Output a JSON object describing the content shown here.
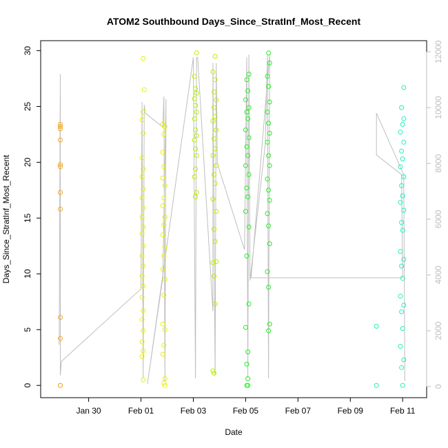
{
  "chart_data": {
    "type": "scatter",
    "title": "ATOM2 Southbound Days_Since_StratInf_Most_Recent",
    "xlabel": "Date",
    "ylabel": "Days_Since_StratInf_Most_Recent",
    "x_axis": {
      "unit": "date",
      "range": [
        "2018-01-28T04:00",
        "2018-02-11T22:00"
      ],
      "ticks": [
        "2018-01-30",
        "2018-02-01",
        "2018-02-03",
        "2018-02-05",
        "2018-02-07",
        "2018-02-09",
        "2018-02-11"
      ],
      "tick_labels": [
        "Jan 30",
        "Feb 01",
        "Feb 03",
        "Feb 05",
        "Feb 07",
        "Feb 09",
        "Feb 11"
      ]
    },
    "y_axis": {
      "range": [
        -1.1,
        30.9
      ],
      "ticks": [
        0,
        5,
        10,
        15,
        20,
        25,
        30
      ],
      "tick_labels": [
        "0",
        "5",
        "10",
        "15",
        "20",
        "25",
        "30"
      ]
    },
    "y2_axis": {
      "position": "right",
      "range": [
        -400,
        12400
      ],
      "ticks": [
        0,
        2000,
        4000,
        6000,
        8000,
        10000,
        12000
      ],
      "tick_labels": [
        "0",
        "2000",
        "4000",
        "6000",
        "8000",
        "10000",
        "12000"
      ],
      "color": "#bebebe"
    },
    "grid": false,
    "legend": "none",
    "colors": {
      "line": "#bebebe",
      "points_gradient": [
        "#ff8000",
        "#ffff00",
        "#c0ff00",
        "#00ff00",
        "#00ffc0"
      ]
    },
    "series": [
      {
        "color": "#f5a623",
        "points": [
          [
            "2018-01-28T22:00",
            23.4
          ],
          [
            "2018-01-28T22:00",
            23.2
          ],
          [
            "2018-01-28T22:00",
            23.0
          ],
          [
            "2018-01-28T22:00",
            22.0
          ],
          [
            "2018-01-28T22:00",
            19.8
          ],
          [
            "2018-01-28T22:00",
            19.6
          ],
          [
            "2018-01-28T22:00",
            17.3
          ],
          [
            "2018-01-28T22:00",
            15.8
          ],
          [
            "2018-01-28T22:00",
            6.1
          ],
          [
            "2018-01-28T22:00",
            4.2
          ],
          [
            "2018-01-28T22:00",
            0
          ],
          [
            "2018-01-28T22:00",
            0
          ]
        ]
      },
      {
        "color": "#e8f000",
        "points": [
          [
            "2018-02-01T02:00",
            29.3
          ],
          [
            "2018-02-01T03:00",
            26.5
          ],
          [
            "2018-02-01T02:00",
            24.5
          ],
          [
            "2018-02-01T01:00",
            23.8
          ],
          [
            "2018-02-01T02:00",
            22.6
          ],
          [
            "2018-02-01T01:00",
            20.4
          ],
          [
            "2018-02-01T02:00",
            19.4
          ],
          [
            "2018-02-01T01:00",
            18.7
          ],
          [
            "2018-02-01T02:00",
            17.6
          ],
          [
            "2018-02-01T01:00",
            16.8
          ],
          [
            "2018-02-01T02:00",
            15.9
          ],
          [
            "2018-02-01T01:00",
            15.1
          ],
          [
            "2018-02-01T02:00",
            14.2
          ],
          [
            "2018-02-01T01:00",
            13.6
          ],
          [
            "2018-02-01T02:00",
            12.5
          ],
          [
            "2018-02-01T01:00",
            11.6
          ],
          [
            "2018-02-01T02:00",
            10.7
          ],
          [
            "2018-02-01T01:00",
            9.8
          ],
          [
            "2018-02-01T02:00",
            8.9
          ],
          [
            "2018-02-01T01:00",
            7.9
          ],
          [
            "2018-02-01T02:00",
            6.7
          ],
          [
            "2018-02-01T01:00",
            5.9
          ],
          [
            "2018-02-01T02:00",
            4.9
          ],
          [
            "2018-02-01T01:00",
            3.9
          ],
          [
            "2018-02-01T02:00",
            3.1
          ],
          [
            "2018-02-01T01:00",
            2.6
          ],
          [
            "2018-02-01T02:00",
            0.5
          ],
          [
            "2018-02-01T20:00",
            23.4
          ],
          [
            "2018-02-01T22:00",
            23.2
          ],
          [
            "2018-02-01T21:00",
            22.5
          ],
          [
            "2018-02-01T20:00",
            20.9
          ],
          [
            "2018-02-01T21:00",
            19.6
          ],
          [
            "2018-02-01T20:00",
            18.6
          ],
          [
            "2018-02-01T22:00",
            17.9
          ],
          [
            "2018-02-01T21:00",
            16.8
          ],
          [
            "2018-02-01T20:00",
            16.1
          ],
          [
            "2018-02-01T22:00",
            15.1
          ],
          [
            "2018-02-01T21:00",
            14.4
          ],
          [
            "2018-02-01T20:00",
            13.5
          ],
          [
            "2018-02-01T22:00",
            12.4
          ],
          [
            "2018-02-01T21:00",
            11.6
          ],
          [
            "2018-02-01T20:00",
            10.4
          ],
          [
            "2018-02-01T22:00",
            9.5
          ],
          [
            "2018-02-01T21:00",
            8.1
          ],
          [
            "2018-02-01T20:00",
            5.5
          ],
          [
            "2018-02-01T22:00",
            5.0
          ],
          [
            "2018-02-01T21:00",
            3.6
          ],
          [
            "2018-02-01T20:00",
            2.8
          ],
          [
            "2018-02-01T22:00",
            0.6
          ],
          [
            "2018-02-01T21:00",
            0.2
          ],
          [
            "2018-02-01T22:00",
            0
          ]
        ]
      },
      {
        "color": "#b8ee00",
        "points": [
          [
            "2018-02-03T03:00",
            29.8
          ],
          [
            "2018-02-03T01:00",
            27.7
          ],
          [
            "2018-02-03T02:00",
            26.6
          ],
          [
            "2018-02-03T03:00",
            26.2
          ],
          [
            "2018-02-03T01:00",
            25.7
          ],
          [
            "2018-02-03T02:00",
            25.1
          ],
          [
            "2018-02-03T03:00",
            24.5
          ],
          [
            "2018-02-03T01:00",
            23.9
          ],
          [
            "2018-02-03T02:00",
            22.9
          ],
          [
            "2018-02-03T03:00",
            22.4
          ],
          [
            "2018-02-03T01:00",
            22.0
          ],
          [
            "2018-02-03T02:00",
            21.2
          ],
          [
            "2018-02-03T03:00",
            20.6
          ],
          [
            "2018-02-03T02:00",
            19.4
          ],
          [
            "2018-02-03T01:00",
            18.7
          ],
          [
            "2018-02-03T03:00",
            17.3
          ],
          [
            "2018-02-03T02:00",
            16.9
          ],
          [
            "2018-02-03T20:00",
            29.5
          ],
          [
            "2018-02-03T18:00",
            28.1
          ],
          [
            "2018-02-03T20:00",
            27.4
          ],
          [
            "2018-02-03T19:00",
            26.3
          ],
          [
            "2018-02-03T21:00",
            25.6
          ],
          [
            "2018-02-03T19:00",
            24.9
          ],
          [
            "2018-02-03T20:00",
            24.1
          ],
          [
            "2018-02-03T18:00",
            23.7
          ],
          [
            "2018-02-03T21:00",
            22.9
          ],
          [
            "2018-02-03T19:00",
            22.1
          ],
          [
            "2018-02-03T20:00",
            21.2
          ],
          [
            "2018-02-03T18:00",
            20.6
          ],
          [
            "2018-02-03T21:00",
            19.7
          ],
          [
            "2018-02-03T19:00",
            18.9
          ],
          [
            "2018-02-03T20:00",
            18.1
          ],
          [
            "2018-02-03T18:00",
            16.7
          ],
          [
            "2018-02-03T21:00",
            15.6
          ],
          [
            "2018-02-03T19:00",
            14.0
          ],
          [
            "2018-02-03T20:00",
            12.9
          ],
          [
            "2018-02-03T18:00",
            11.0
          ],
          [
            "2018-02-03T21:00",
            11.1
          ],
          [
            "2018-02-03T19:00",
            9.8
          ],
          [
            "2018-02-03T20:00",
            7.3
          ],
          [
            "2018-02-03T18:00",
            1.3
          ],
          [
            "2018-02-03T19:00",
            1.1
          ]
        ]
      },
      {
        "color": "#22ee22",
        "points": [
          [
            "2018-02-05T03:00",
            27.9
          ],
          [
            "2018-02-05T01:00",
            27.4
          ],
          [
            "2018-02-05T02:00",
            26.4
          ],
          [
            "2018-02-05T00:00",
            25.6
          ],
          [
            "2018-02-05T03:00",
            24.9
          ],
          [
            "2018-02-05T01:00",
            24.5
          ],
          [
            "2018-02-05T02:00",
            23.9
          ],
          [
            "2018-02-05T00:00",
            22.9
          ],
          [
            "2018-02-05T03:00",
            22.2
          ],
          [
            "2018-02-05T01:00",
            21.4
          ],
          [
            "2018-02-05T02:00",
            20.6
          ],
          [
            "2018-02-05T00:00",
            19.7
          ],
          [
            "2018-02-05T03:00",
            18.9
          ],
          [
            "2018-02-05T01:00",
            17.7
          ],
          [
            "2018-02-05T02:00",
            16.9
          ],
          [
            "2018-02-05T00:00",
            15.6
          ],
          [
            "2018-02-05T03:00",
            14.2
          ],
          [
            "2018-02-05T01:00",
            11.6
          ],
          [
            "2018-02-05T03:00",
            7.3
          ],
          [
            "2018-02-05T00:00",
            5.2
          ],
          [
            "2018-02-05T02:00",
            3.0
          ],
          [
            "2018-02-05T01:00",
            1.9
          ],
          [
            "2018-02-05T02:00",
            0.6
          ],
          [
            "2018-02-05T01:00",
            0
          ],
          [
            "2018-02-05T02:00",
            0
          ],
          [
            "2018-02-05T21:00",
            29.8
          ],
          [
            "2018-02-05T22:00",
            28.9
          ],
          [
            "2018-02-05T20:00",
            27.7
          ],
          [
            "2018-02-05T21:00",
            26.8
          ],
          [
            "2018-02-05T22:00",
            25.4
          ],
          [
            "2018-02-05T20:00",
            24.5
          ],
          [
            "2018-02-05T21:00",
            23.5
          ],
          [
            "2018-02-05T22:00",
            22.6
          ],
          [
            "2018-02-05T20:00",
            21.8
          ],
          [
            "2018-02-05T21:00",
            20.6
          ],
          [
            "2018-02-05T22:00",
            19.7
          ],
          [
            "2018-02-05T20:00",
            18.5
          ],
          [
            "2018-02-05T21:00",
            17.5
          ],
          [
            "2018-02-05T22:00",
            16.6
          ],
          [
            "2018-02-05T20:00",
            15.4
          ],
          [
            "2018-02-05T21:00",
            14.3
          ],
          [
            "2018-02-05T22:00",
            12.7
          ],
          [
            "2018-02-05T20:00",
            10.2
          ],
          [
            "2018-02-05T21:00",
            8.8
          ],
          [
            "2018-02-05T22:00",
            5.5
          ],
          [
            "2018-02-05T21:00",
            4.9
          ]
        ]
      },
      {
        "color": "#22eebb",
        "points": [
          [
            "2018-02-10T00:00",
            5.3
          ],
          [
            "2018-02-10T00:00",
            0
          ],
          [
            "2018-02-10T23:00",
            24.9
          ],
          [
            "2018-02-11T01:00",
            23.9
          ],
          [
            "2018-02-11T00:00",
            23.4
          ],
          [
            "2018-02-10T22:00",
            22.7
          ],
          [
            "2018-02-11T01:00",
            21.8
          ],
          [
            "2018-02-10T23:00",
            21.0
          ],
          [
            "2018-02-11T00:00",
            20.3
          ],
          [
            "2018-02-10T22:00",
            19.6
          ],
          [
            "2018-02-11T01:00",
            18.7
          ],
          [
            "2018-02-10T23:00",
            17.9
          ],
          [
            "2018-02-11T00:00",
            17.0
          ],
          [
            "2018-02-10T22:00",
            16.4
          ],
          [
            "2018-02-11T01:00",
            15.7
          ],
          [
            "2018-02-10T23:00",
            14.6
          ],
          [
            "2018-02-11T00:00",
            13.9
          ],
          [
            "2018-02-10T22:00",
            12.0
          ],
          [
            "2018-02-11T01:00",
            11.3
          ],
          [
            "2018-02-10T23:00",
            10.7
          ],
          [
            "2018-02-11T00:00",
            9.6
          ],
          [
            "2018-02-10T22:00",
            8.0
          ],
          [
            "2018-02-11T01:00",
            7.2
          ],
          [
            "2018-02-10T23:00",
            6.6
          ],
          [
            "2018-02-11T00:00",
            5.1
          ],
          [
            "2018-02-10T22:00",
            3.5
          ],
          [
            "2018-02-11T01:00",
            2.3
          ],
          [
            "2018-02-10T23:00",
            1.6
          ],
          [
            "2018-02-11T00:00",
            0
          ],
          [
            "2018-02-11T01:00",
            26.7
          ]
        ]
      }
    ],
    "line_y2": [
      [
        "2018-01-28T21:00",
        1500
      ],
      [
        "2018-01-28T22:00",
        11200
      ],
      [
        "2018-01-28T22:00",
        400
      ],
      [
        "2018-01-28T23:00",
        900
      ],
      [
        "2018-02-01T00:00",
        3500
      ],
      [
        "2018-02-01T01:00",
        10200
      ],
      [
        "2018-02-01T02:00",
        300
      ],
      [
        "2018-02-01T03:00",
        10100
      ],
      [
        "2018-02-01T04:00",
        9800
      ],
      [
        "2018-02-01T20:00",
        9300
      ],
      [
        "2018-02-01T21:00",
        10400
      ],
      [
        "2018-02-01T22:00",
        200
      ],
      [
        "2018-02-01T23:00",
        10300
      ],
      [
        "2018-02-01T20:00",
        3900
      ],
      [
        "2018-02-01T06:00",
        100
      ],
      [
        "2018-02-03T00:00",
        11800
      ],
      [
        "2018-02-03T02:00",
        300
      ],
      [
        "2018-02-03T03:00",
        11800
      ],
      [
        "2018-02-03T04:00",
        11800
      ],
      [
        "2018-02-03T18:00",
        2700
      ],
      [
        "2018-02-03T18:00",
        11600
      ],
      [
        "2018-02-03T20:00",
        400
      ],
      [
        "2018-02-03T21:00",
        11600
      ],
      [
        "2018-02-03T22:00",
        8000
      ],
      [
        "2018-02-04T23:00",
        4900
      ],
      [
        "2018-02-05T01:00",
        11800
      ],
      [
        "2018-02-05T02:00",
        300
      ],
      [
        "2018-02-05T03:00",
        11900
      ],
      [
        "2018-02-05T04:00",
        3800
      ],
      [
        "2018-02-05T18:00",
        8700
      ],
      [
        "2018-02-05T20:00",
        11900
      ],
      [
        "2018-02-05T21:00",
        300
      ],
      [
        "2018-02-05T22:00",
        11900
      ],
      [
        "2018-02-05T05:00",
        3900
      ],
      [
        "2018-02-11T00:00",
        3900
      ],
      [
        "2018-02-10T23:00",
        7600
      ],
      [
        "2018-02-10T00:00",
        8300
      ],
      [
        "2018-02-10T00:00",
        9800
      ],
      [
        "2018-02-11T01:00",
        7600
      ],
      [
        "2018-02-11T02:00",
        200
      ]
    ]
  }
}
